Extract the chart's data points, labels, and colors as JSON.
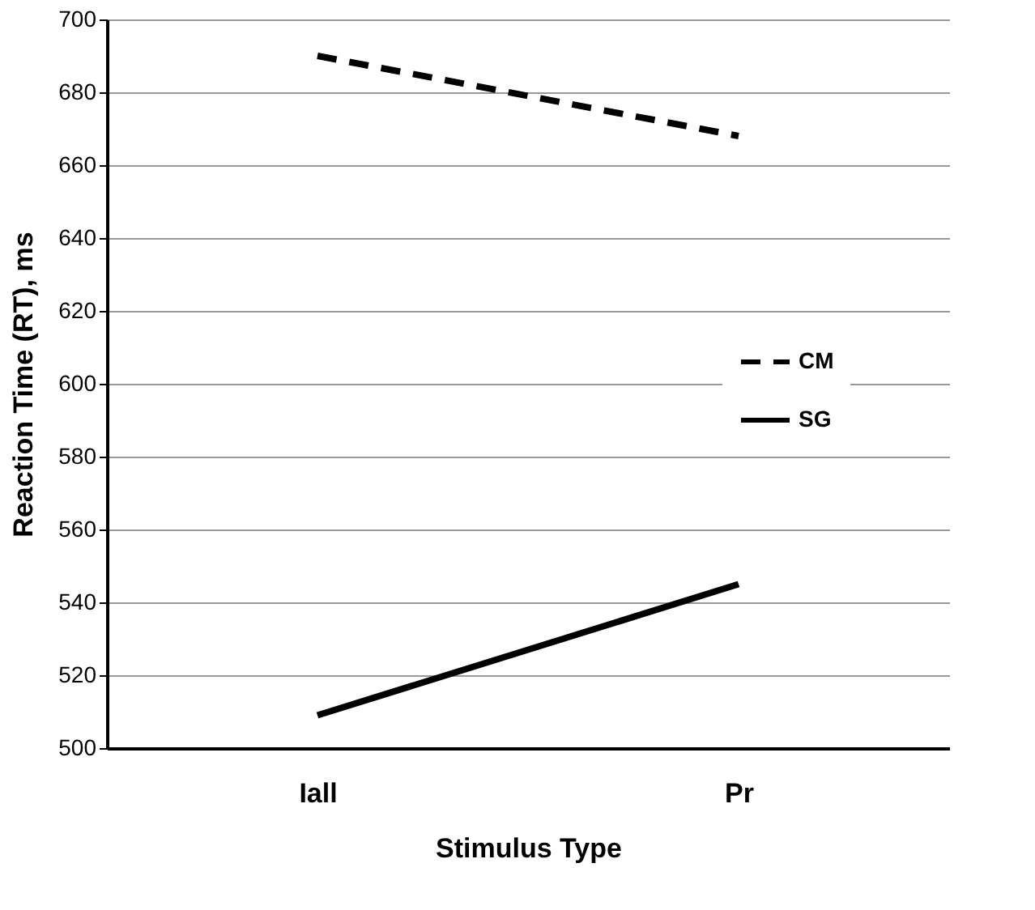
{
  "chart_data": {
    "type": "line",
    "xlabel": "Stimulus  Type",
    "ylabel": "Reaction Time (RT), ms",
    "categories": [
      "Iall",
      "Pr"
    ],
    "series": [
      {
        "name": "CM",
        "color": "#000000",
        "values": [
          690,
          668
        ],
        "line_style": "dashed"
      },
      {
        "name": "SG",
        "color": "#000000",
        "values": [
          509,
          545
        ],
        "line_style": "solid"
      }
    ],
    "ylim": [
      500,
      700
    ],
    "yticks": [
      500,
      520,
      540,
      560,
      580,
      600,
      620,
      640,
      660,
      680,
      700
    ],
    "grid": "y",
    "legend": "right",
    "marker": "none"
  }
}
